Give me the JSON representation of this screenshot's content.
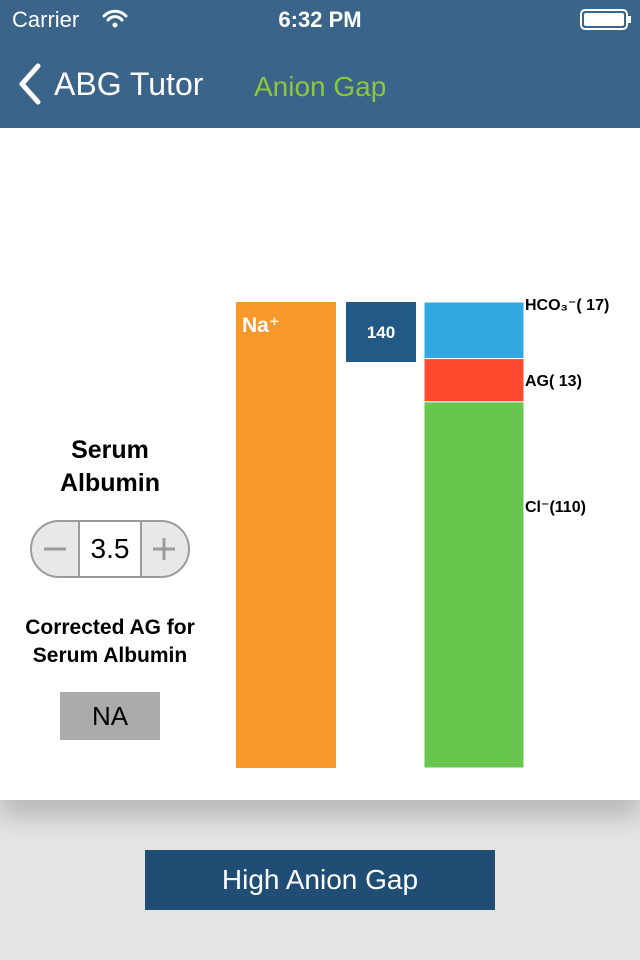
{
  "status_bar": {
    "carrier": "Carrier",
    "time": "6:32 PM"
  },
  "nav": {
    "back": "ABG Tutor",
    "title": "Anion Gap"
  },
  "panel": {
    "albumin_label": "Serum Albumin",
    "albumin_value": 3.5,
    "corrected_label": "Corrected AG for Serum Albumin",
    "corrected_value": "NA"
  },
  "button": "High Anion Gap",
  "chart_data": {
    "type": "bar",
    "series": [
      {
        "name": "Na⁺",
        "color": "#f7982a",
        "values": [
          140
        ]
      },
      {
        "name": "HCO₃⁻",
        "color": "#32a8e0",
        "values": [
          17
        ],
        "value_labels": [
          "( 17)"
        ]
      },
      {
        "name": "AG",
        "color": "#fd4a2f",
        "values": [
          13
        ],
        "value_labels": [
          "( 13)"
        ]
      },
      {
        "name": "Cl⁻",
        "color": "#68c64f",
        "values": [
          110
        ],
        "value_labels": [
          "(110)"
        ]
      }
    ]
  }
}
